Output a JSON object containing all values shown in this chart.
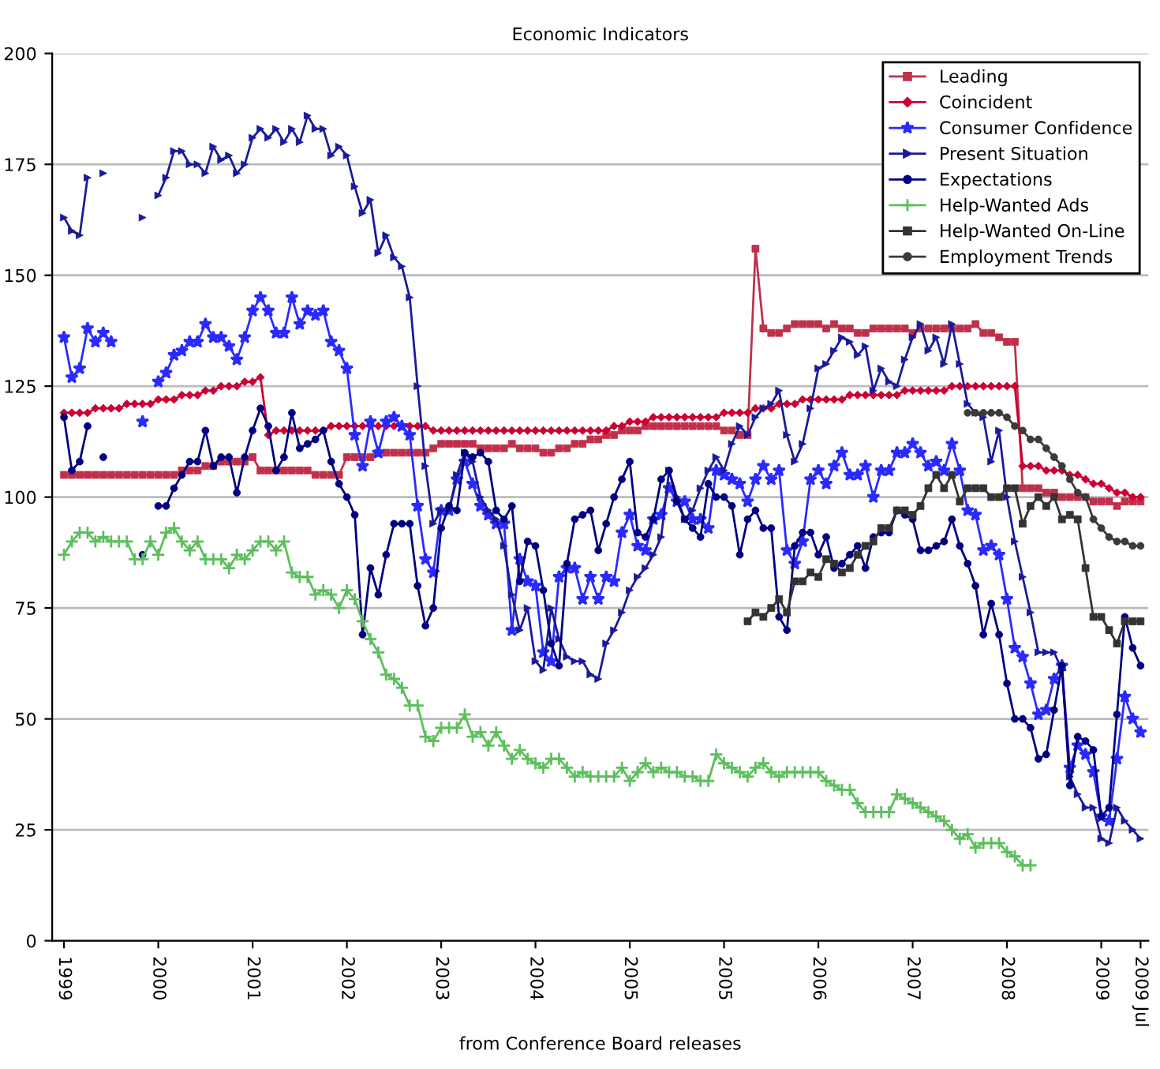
{
  "chart_data": {
    "type": "line",
    "title": "Economic Indicators",
    "xlabel": "from Conference Board releases",
    "ylim": [
      0,
      200
    ],
    "yticks": [
      0,
      25,
      50,
      75,
      100,
      125,
      150,
      175,
      200
    ],
    "grid": "y",
    "legend": "top right",
    "categories": [
      "1999",
      null,
      null,
      null,
      null,
      null,
      null,
      null,
      null,
      null,
      null,
      null,
      "2000",
      null,
      null,
      null,
      null,
      null,
      null,
      null,
      null,
      null,
      null,
      null,
      "2001",
      null,
      null,
      null,
      null,
      null,
      null,
      null,
      null,
      null,
      null,
      null,
      "2002",
      null,
      null,
      null,
      null,
      null,
      null,
      null,
      null,
      null,
      null,
      null,
      "2003",
      null,
      null,
      null,
      null,
      null,
      null,
      null,
      null,
      null,
      null,
      null,
      "2004",
      null,
      null,
      null,
      null,
      null,
      null,
      null,
      null,
      null,
      null,
      null,
      "2005",
      null,
      null,
      null,
      null,
      null,
      null,
      null,
      null,
      null,
      null,
      null,
      "2005",
      null,
      null,
      null,
      null,
      null,
      null,
      null,
      null,
      null,
      null,
      null,
      "2006",
      null,
      null,
      null,
      null,
      null,
      null,
      null,
      null,
      null,
      null,
      null,
      "2007",
      null,
      null,
      null,
      null,
      null,
      null,
      null,
      null,
      null,
      null,
      null,
      "2008",
      null,
      null,
      null,
      null,
      null,
      null,
      null,
      null,
      null,
      null,
      null,
      "2009",
      null,
      null,
      null,
      null,
      "2009 Jul"
    ],
    "series": [
      {
        "name": "Leading",
        "color": "#c0304a",
        "marker": "square",
        "values": [
          105,
          105,
          105,
          105,
          105,
          105,
          105,
          105,
          105,
          105,
          105,
          105,
          105,
          105,
          105,
          106,
          106,
          106,
          107,
          107,
          108,
          108,
          108,
          108,
          109,
          106,
          106,
          106,
          106,
          106,
          106,
          106,
          105,
          105,
          105,
          105,
          109,
          109,
          109,
          109,
          110,
          110,
          110,
          110,
          110,
          110,
          110,
          111,
          112,
          112,
          112,
          112,
          112,
          111,
          111,
          111,
          111,
          112,
          111,
          111,
          111,
          110,
          110,
          111,
          111,
          112,
          112,
          113,
          113,
          114,
          114,
          115,
          115,
          115,
          116,
          116,
          116,
          116,
          116,
          116,
          116,
          116,
          116,
          116,
          115,
          115,
          114,
          114,
          156,
          138,
          137,
          137,
          138,
          139,
          139,
          139,
          139,
          138,
          139,
          138,
          138,
          137,
          137,
          138,
          138,
          138,
          138,
          138,
          137,
          138,
          138,
          138,
          138,
          138,
          138,
          138,
          139,
          137,
          137,
          136,
          135,
          135,
          102,
          102,
          102,
          101,
          101,
          100,
          100,
          100,
          100,
          99,
          99,
          99,
          98,
          99,
          99,
          99
        ]
      },
      {
        "name": "Coincident",
        "color": "#cc0033",
        "marker": "diamond",
        "values": [
          119,
          119,
          119,
          119,
          120,
          120,
          120,
          120,
          121,
          121,
          121,
          121,
          122,
          122,
          122,
          123,
          123,
          123,
          124,
          124,
          125,
          125,
          125,
          126,
          126,
          127,
          114,
          115,
          115,
          115,
          115,
          115,
          115,
          115,
          116,
          116,
          116,
          116,
          116,
          116,
          116,
          116,
          116,
          116,
          116,
          116,
          116,
          115,
          115,
          115,
          115,
          115,
          115,
          115,
          115,
          115,
          115,
          115,
          115,
          115,
          115,
          115,
          115,
          115,
          115,
          115,
          115,
          115,
          115,
          115,
          116,
          116,
          117,
          117,
          117,
          118,
          118,
          118,
          118,
          118,
          118,
          118,
          118,
          118,
          119,
          119,
          119,
          119,
          120,
          120,
          120,
          121,
          121,
          121,
          122,
          122,
          122,
          122,
          122,
          122,
          123,
          123,
          123,
          123,
          123,
          123,
          123,
          124,
          124,
          124,
          124,
          124,
          124,
          125,
          125,
          125,
          125,
          125,
          125,
          125,
          125,
          125,
          107,
          107,
          107,
          106,
          106,
          106,
          105,
          105,
          104,
          103,
          103,
          102,
          101,
          101,
          100,
          100
        ]
      },
      {
        "name": "Consumer Confidence",
        "color": "#2a2aff",
        "marker": "star",
        "values": [
          136,
          127,
          129,
          138,
          135,
          137,
          135,
          null,
          null,
          null,
          117,
          null,
          126,
          128,
          132,
          133,
          135,
          135,
          139,
          136,
          136,
          134,
          131,
          136,
          142,
          145,
          142,
          137,
          137,
          145,
          139,
          142,
          141,
          142,
          135,
          133,
          129,
          114,
          107,
          117,
          110,
          117,
          118,
          116,
          114,
          98,
          86,
          83,
          97,
          97,
          104,
          108,
          103,
          98,
          96,
          94,
          94,
          70,
          86,
          81,
          80,
          65,
          63,
          82,
          84,
          84,
          77,
          82,
          77,
          82,
          81,
          92,
          96,
          89,
          88,
          95,
          96,
          102,
          99,
          99,
          95,
          95,
          93,
          106,
          105,
          104,
          103,
          99,
          104,
          107,
          104,
          106,
          88,
          85,
          90,
          104,
          106,
          103,
          107,
          110,
          105,
          105,
          107,
          100,
          106,
          106,
          110,
          110,
          112,
          110,
          107,
          108,
          106,
          112,
          106,
          97,
          96,
          88,
          89,
          87,
          77,
          66,
          64,
          58,
          51,
          52,
          59,
          62,
          39,
          44,
          42,
          38,
          28,
          27,
          41,
          55,
          50,
          47
        ]
      },
      {
        "name": "Present Situation",
        "color": "#1a1a9a",
        "marker": "triangle",
        "values": [
          163,
          160,
          159,
          172,
          null,
          173,
          null,
          null,
          null,
          null,
          163,
          null,
          168,
          172,
          178,
          178,
          175,
          175,
          173,
          179,
          176,
          177,
          173,
          175,
          181,
          183,
          181,
          183,
          180,
          183,
          180,
          186,
          183,
          183,
          177,
          179,
          177,
          170,
          164,
          167,
          155,
          159,
          154,
          152,
          145,
          125,
          107,
          94,
          97,
          97,
          105,
          110,
          108,
          100,
          97,
          95,
          89,
          78,
          70,
          75,
          63,
          61,
          75,
          68,
          64,
          63,
          63,
          60,
          59,
          67,
          70,
          74,
          79,
          82,
          84,
          87,
          91,
          106,
          100,
          95,
          97,
          102,
          106,
          109,
          106,
          112,
          116,
          114,
          118,
          120,
          121,
          124,
          114,
          108,
          112,
          120,
          129,
          130,
          133,
          136,
          135,
          132,
          134,
          124,
          129,
          126,
          125,
          131,
          136,
          139,
          133,
          136,
          130,
          139,
          130,
          121,
          119,
          118,
          108,
          115,
          100,
          90,
          82,
          74,
          65,
          65,
          65,
          61,
          37,
          33,
          30,
          30,
          23,
          22,
          30,
          27,
          25,
          23
        ]
      },
      {
        "name": "Expectations",
        "color": "#000080",
        "marker": "circle",
        "values": [
          118,
          106,
          108,
          116,
          null,
          109,
          null,
          null,
          null,
          null,
          87,
          null,
          98,
          98,
          102,
          105,
          108,
          108,
          115,
          107,
          109,
          109,
          101,
          109,
          115,
          120,
          116,
          106,
          109,
          119,
          111,
          112,
          113,
          115,
          108,
          103,
          100,
          96,
          69,
          84,
          78,
          87,
          94,
          94,
          94,
          80,
          71,
          75,
          93,
          98,
          97,
          110,
          109,
          110,
          108,
          97,
          95,
          98,
          81,
          90,
          89,
          79,
          67,
          62,
          85,
          95,
          96,
          97,
          88,
          94,
          100,
          104,
          108,
          92,
          91,
          95,
          104,
          106,
          99,
          95,
          93,
          91,
          103,
          100,
          100,
          98,
          87,
          95,
          97,
          93,
          93,
          73,
          70,
          89,
          92,
          92,
          87,
          91,
          84,
          85,
          87,
          89,
          84,
          91,
          92,
          92,
          97,
          96,
          95,
          88,
          88,
          89,
          90,
          95,
          89,
          85,
          80,
          69,
          76,
          69,
          58,
          50,
          50,
          48,
          41,
          42,
          52,
          62,
          35,
          46,
          45,
          43,
          28,
          30,
          51,
          73,
          66,
          62
        ]
      },
      {
        "name": "Help-Wanted Ads",
        "color": "#5cbf5c",
        "marker": "cross",
        "values": [
          87,
          90,
          92,
          92,
          90,
          91,
          90,
          90,
          90,
          86,
          86,
          90,
          87,
          92,
          93,
          90,
          88,
          90,
          86,
          86,
          86,
          84,
          87,
          86,
          88,
          90,
          90,
          88,
          90,
          83,
          82,
          82,
          78,
          79,
          78,
          75,
          79,
          77,
          72,
          68,
          65,
          60,
          59,
          57,
          53,
          53,
          46,
          45,
          48,
          48,
          48,
          51,
          46,
          47,
          44,
          47,
          44,
          41,
          43,
          41,
          40,
          39,
          41,
          41,
          39,
          37,
          38,
          37,
          37,
          37,
          37,
          39,
          36,
          38,
          40,
          38,
          39,
          38,
          38,
          37,
          37,
          36,
          36,
          42,
          40,
          39,
          38,
          37,
          39,
          40,
          38,
          37,
          38,
          38,
          38,
          38,
          38,
          36,
          35,
          34,
          34,
          31,
          29,
          29,
          29,
          29,
          33,
          32,
          31,
          30,
          29,
          28,
          27,
          25,
          23,
          24,
          21,
          22,
          22,
          22,
          20,
          19,
          17,
          17,
          null,
          null,
          null,
          null,
          null,
          null,
          null,
          null,
          null,
          null,
          null,
          null,
          null,
          null
        ]
      },
      {
        "name": "Help-Wanted On-Line",
        "color": "#333333",
        "marker": "square",
        "values": [
          null,
          null,
          null,
          null,
          null,
          null,
          null,
          null,
          null,
          null,
          null,
          null,
          null,
          null,
          null,
          null,
          null,
          null,
          null,
          null,
          null,
          null,
          null,
          null,
          null,
          null,
          null,
          null,
          null,
          null,
          null,
          null,
          null,
          null,
          null,
          null,
          null,
          null,
          null,
          null,
          null,
          null,
          null,
          null,
          null,
          null,
          null,
          null,
          null,
          null,
          null,
          null,
          null,
          null,
          null,
          null,
          null,
          null,
          null,
          null,
          null,
          null,
          null,
          null,
          null,
          null,
          null,
          null,
          null,
          null,
          null,
          null,
          null,
          null,
          null,
          null,
          null,
          null,
          null,
          null,
          null,
          null,
          null,
          null,
          null,
          null,
          null,
          72,
          74,
          73,
          75,
          77,
          74,
          81,
          81,
          83,
          82,
          86,
          85,
          83,
          84,
          87,
          89,
          90,
          93,
          93,
          97,
          97,
          96,
          98,
          102,
          105,
          102,
          105,
          99,
          102,
          102,
          102,
          100,
          100,
          102,
          102,
          94,
          98,
          100,
          98,
          100,
          95,
          96,
          95,
          84,
          73,
          73,
          70,
          67,
          72,
          72,
          72
        ]
      },
      {
        "name": "Employment Trends",
        "color": "#3a3a3a",
        "marker": "circle",
        "values": [
          null,
          null,
          null,
          null,
          null,
          null,
          null,
          null,
          null,
          null,
          null,
          null,
          null,
          null,
          null,
          null,
          null,
          null,
          null,
          null,
          null,
          null,
          null,
          null,
          null,
          null,
          null,
          null,
          null,
          null,
          null,
          null,
          null,
          null,
          null,
          null,
          null,
          null,
          null,
          null,
          null,
          null,
          null,
          null,
          null,
          null,
          null,
          null,
          null,
          null,
          null,
          null,
          null,
          null,
          null,
          null,
          null,
          null,
          null,
          null,
          null,
          null,
          null,
          null,
          null,
          null,
          null,
          null,
          null,
          null,
          null,
          null,
          null,
          null,
          null,
          null,
          null,
          null,
          null,
          null,
          null,
          null,
          null,
          null,
          null,
          null,
          null,
          null,
          null,
          null,
          null,
          null,
          null,
          null,
          null,
          null,
          null,
          null,
          null,
          null,
          null,
          null,
          null,
          null,
          null,
          null,
          null,
          null,
          null,
          null,
          null,
          null,
          null,
          null,
          null,
          119,
          119,
          119,
          119,
          119,
          118,
          116,
          115,
          113,
          113,
          111,
          109,
          107,
          104,
          101,
          100,
          95,
          93,
          91,
          90,
          90,
          89,
          89
        ]
      }
    ]
  }
}
